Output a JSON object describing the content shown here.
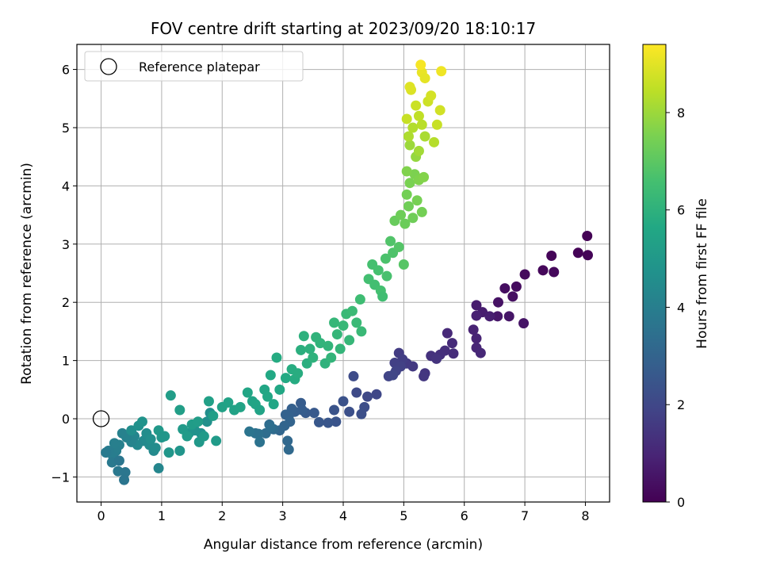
{
  "chart_data": {
    "type": "scatter",
    "title": "FOV centre drift starting at 2023/09/20 18:10:17",
    "xlabel": "Angular distance from reference (arcmin)",
    "ylabel": "Rotation from reference (arcmin)",
    "xlim": [
      -0.4,
      8.4
    ],
    "ylim": [
      -1.43,
      6.43
    ],
    "xticks": [
      0,
      1,
      2,
      3,
      4,
      5,
      6,
      7,
      8
    ],
    "yticks": [
      -1,
      0,
      1,
      2,
      3,
      4,
      5,
      6
    ],
    "xtick_labels": [
      "0",
      "1",
      "2",
      "3",
      "4",
      "5",
      "6",
      "7",
      "8"
    ],
    "ytick_labels": [
      "−1",
      "0",
      "1",
      "2",
      "3",
      "4",
      "5",
      "6"
    ],
    "grid": true,
    "legend": {
      "position": "top-left",
      "entries": [
        {
          "label": "Reference platepar",
          "marker": "open-circle"
        }
      ]
    },
    "reference_point": {
      "x": 0,
      "y": 0
    },
    "colorbar": {
      "label": "Hours from first FF file",
      "colormap": "viridis",
      "range": [
        0,
        9.4
      ],
      "ticks": [
        0,
        2,
        4,
        6,
        8
      ],
      "tick_labels": [
        "0",
        "2",
        "4",
        "6",
        "8"
      ]
    },
    "points": [
      {
        "x": 8.03,
        "y": 3.14,
        "h": 0.02
      },
      {
        "x": 7.88,
        "y": 2.85,
        "h": 0.05
      },
      {
        "x": 8.04,
        "y": 2.81,
        "h": 0.08
      },
      {
        "x": 7.44,
        "y": 2.8,
        "h": 0.12
      },
      {
        "x": 7.3,
        "y": 2.55,
        "h": 0.16
      },
      {
        "x": 7.48,
        "y": 2.52,
        "h": 0.2
      },
      {
        "x": 7.0,
        "y": 2.48,
        "h": 0.25
      },
      {
        "x": 6.86,
        "y": 2.27,
        "h": 0.3
      },
      {
        "x": 6.67,
        "y": 2.24,
        "h": 0.35
      },
      {
        "x": 6.8,
        "y": 2.1,
        "h": 0.4
      },
      {
        "x": 6.56,
        "y": 2.0,
        "h": 0.45
      },
      {
        "x": 6.98,
        "y": 1.64,
        "h": 0.5
      },
      {
        "x": 6.74,
        "y": 1.76,
        "h": 0.55
      },
      {
        "x": 6.55,
        "y": 1.76,
        "h": 0.6
      },
      {
        "x": 6.2,
        "y": 1.95,
        "h": 0.7
      },
      {
        "x": 6.3,
        "y": 1.83,
        "h": 0.75
      },
      {
        "x": 6.42,
        "y": 1.76,
        "h": 0.8
      },
      {
        "x": 6.2,
        "y": 1.77,
        "h": 0.85
      },
      {
        "x": 6.15,
        "y": 1.53,
        "h": 0.9
      },
      {
        "x": 6.2,
        "y": 1.38,
        "h": 0.95
      },
      {
        "x": 6.2,
        "y": 1.22,
        "h": 1.0
      },
      {
        "x": 6.27,
        "y": 1.13,
        "h": 1.05
      },
      {
        "x": 5.72,
        "y": 1.47,
        "h": 1.1
      },
      {
        "x": 5.8,
        "y": 1.3,
        "h": 1.15
      },
      {
        "x": 5.82,
        "y": 1.12,
        "h": 1.2
      },
      {
        "x": 5.68,
        "y": 1.17,
        "h": 1.25
      },
      {
        "x": 5.6,
        "y": 1.1,
        "h": 1.3
      },
      {
        "x": 5.45,
        "y": 1.08,
        "h": 1.35
      },
      {
        "x": 5.54,
        "y": 1.03,
        "h": 1.4
      },
      {
        "x": 5.35,
        "y": 0.78,
        "h": 1.45
      },
      {
        "x": 5.33,
        "y": 0.73,
        "h": 1.5
      },
      {
        "x": 5.15,
        "y": 0.9,
        "h": 1.55
      },
      {
        "x": 5.05,
        "y": 0.95,
        "h": 1.6
      },
      {
        "x": 4.92,
        "y": 1.13,
        "h": 1.65
      },
      {
        "x": 4.98,
        "y": 1.02,
        "h": 1.7
      },
      {
        "x": 4.85,
        "y": 0.96,
        "h": 1.75
      },
      {
        "x": 4.95,
        "y": 0.9,
        "h": 1.8
      },
      {
        "x": 4.87,
        "y": 0.82,
        "h": 1.85
      },
      {
        "x": 4.75,
        "y": 0.73,
        "h": 1.9
      },
      {
        "x": 4.82,
        "y": 0.75,
        "h": 1.95
      },
      {
        "x": 4.55,
        "y": 0.42,
        "h": 2.0
      },
      {
        "x": 4.4,
        "y": 0.38,
        "h": 2.05
      },
      {
        "x": 4.22,
        "y": 0.45,
        "h": 2.1
      },
      {
        "x": 4.17,
        "y": 0.73,
        "h": 2.15
      },
      {
        "x": 4.35,
        "y": 0.2,
        "h": 2.2
      },
      {
        "x": 4.3,
        "y": 0.08,
        "h": 2.25
      },
      {
        "x": 4.1,
        "y": 0.12,
        "h": 2.3
      },
      {
        "x": 4.0,
        "y": 0.3,
        "h": 2.35
      },
      {
        "x": 3.85,
        "y": 0.15,
        "h": 2.4
      },
      {
        "x": 3.88,
        "y": -0.05,
        "h": 2.45
      },
      {
        "x": 3.75,
        "y": -0.07,
        "h": 2.5
      },
      {
        "x": 3.6,
        "y": -0.06,
        "h": 2.55
      },
      {
        "x": 3.52,
        "y": 0.1,
        "h": 2.6
      },
      {
        "x": 3.38,
        "y": 0.1,
        "h": 2.65
      },
      {
        "x": 3.3,
        "y": 0.27,
        "h": 2.7
      },
      {
        "x": 3.32,
        "y": 0.15,
        "h": 2.75
      },
      {
        "x": 3.2,
        "y": 0.12,
        "h": 2.8
      },
      {
        "x": 3.15,
        "y": 0.17,
        "h": 2.85
      },
      {
        "x": 3.1,
        "y": 0.05,
        "h": 2.9
      },
      {
        "x": 3.05,
        "y": 0.07,
        "h": 2.95
      },
      {
        "x": 3.12,
        "y": -0.05,
        "h": 3.0
      },
      {
        "x": 3.03,
        "y": -0.12,
        "h": 3.05
      },
      {
        "x": 2.95,
        "y": -0.2,
        "h": 3.1
      },
      {
        "x": 3.08,
        "y": -0.38,
        "h": 3.15
      },
      {
        "x": 3.1,
        "y": -0.53,
        "h": 3.2
      },
      {
        "x": 2.85,
        "y": -0.18,
        "h": 3.25
      },
      {
        "x": 2.78,
        "y": -0.1,
        "h": 3.3
      },
      {
        "x": 2.72,
        "y": -0.25,
        "h": 3.35
      },
      {
        "x": 2.8,
        "y": -0.15,
        "h": 3.4
      },
      {
        "x": 2.6,
        "y": -0.26,
        "h": 3.45
      },
      {
        "x": 2.55,
        "y": -0.25,
        "h": 3.5
      },
      {
        "x": 2.62,
        "y": -0.4,
        "h": 3.55
      },
      {
        "x": 2.45,
        "y": -0.22,
        "h": 3.6
      },
      {
        "x": 1.8,
        "y": 0.1,
        "h": 4.6
      },
      {
        "x": 1.75,
        "y": -0.05,
        "h": 4.65
      },
      {
        "x": 1.65,
        "y": -0.25,
        "h": 4.7
      },
      {
        "x": 1.55,
        "y": -0.2,
        "h": 4.75
      },
      {
        "x": 1.45,
        "y": -0.25,
        "h": 4.8
      },
      {
        "x": 1.3,
        "y": -0.55,
        "h": 4.85
      },
      {
        "x": 1.12,
        "y": -0.58,
        "h": 4.9
      },
      {
        "x": 1.05,
        "y": -0.3,
        "h": 4.95
      },
      {
        "x": 0.95,
        "y": -0.2,
        "h": 5.0
      },
      {
        "x": 0.95,
        "y": -0.85,
        "h": 4.3
      },
      {
        "x": 0.87,
        "y": -0.55,
        "h": 4.4
      },
      {
        "x": 0.8,
        "y": -0.45,
        "h": 4.5
      },
      {
        "x": 0.7,
        "y": -0.38,
        "h": 4.45
      },
      {
        "x": 0.6,
        "y": -0.45,
        "h": 4.35
      },
      {
        "x": 0.55,
        "y": -0.3,
        "h": 4.25
      },
      {
        "x": 0.5,
        "y": -0.4,
        "h": 4.2
      },
      {
        "x": 0.42,
        "y": -0.32,
        "h": 4.15
      },
      {
        "x": 0.35,
        "y": -0.25,
        "h": 4.1
      },
      {
        "x": 0.3,
        "y": -0.45,
        "h": 4.05
      },
      {
        "x": 0.25,
        "y": -0.55,
        "h": 4.0
      },
      {
        "x": 0.2,
        "y": -0.65,
        "h": 3.95
      },
      {
        "x": 0.12,
        "y": -0.55,
        "h": 3.9
      },
      {
        "x": 0.08,
        "y": -0.58,
        "h": 3.85
      },
      {
        "x": 0.18,
        "y": -0.75,
        "h": 3.8
      },
      {
        "x": 0.28,
        "y": -0.9,
        "h": 3.75
      },
      {
        "x": 0.4,
        "y": -0.92,
        "h": 3.7
      },
      {
        "x": 0.38,
        "y": -1.05,
        "h": 3.65
      },
      {
        "x": 0.3,
        "y": -0.72,
        "h": 3.68
      },
      {
        "x": 0.22,
        "y": -0.42,
        "h": 4.02
      },
      {
        "x": 0.5,
        "y": -0.2,
        "h": 4.6
      },
      {
        "x": 0.62,
        "y": -0.12,
        "h": 4.7
      },
      {
        "x": 0.68,
        "y": -0.05,
        "h": 4.8
      },
      {
        "x": 0.75,
        "y": -0.25,
        "h": 4.55
      },
      {
        "x": 0.82,
        "y": -0.35,
        "h": 4.62
      },
      {
        "x": 0.9,
        "y": -0.5,
        "h": 4.5
      },
      {
        "x": 1.0,
        "y": -0.32,
        "h": 4.9
      },
      {
        "x": 1.15,
        "y": 0.4,
        "h": 5.2
      },
      {
        "x": 1.3,
        "y": 0.15,
        "h": 5.25
      },
      {
        "x": 1.35,
        "y": -0.18,
        "h": 5.05
      },
      {
        "x": 1.42,
        "y": -0.3,
        "h": 5.1
      },
      {
        "x": 1.5,
        "y": -0.1,
        "h": 5.15
      },
      {
        "x": 1.6,
        "y": -0.05,
        "h": 5.2
      },
      {
        "x": 1.62,
        "y": -0.4,
        "h": 5.0
      },
      {
        "x": 1.7,
        "y": -0.3,
        "h": 5.05
      },
      {
        "x": 1.78,
        "y": 0.3,
        "h": 5.3
      },
      {
        "x": 1.85,
        "y": 0.05,
        "h": 5.25
      },
      {
        "x": 1.9,
        "y": -0.38,
        "h": 5.1
      },
      {
        "x": 2.0,
        "y": 0.2,
        "h": 5.35
      },
      {
        "x": 2.1,
        "y": 0.28,
        "h": 5.4
      },
      {
        "x": 2.2,
        "y": 0.15,
        "h": 5.38
      },
      {
        "x": 2.3,
        "y": 0.2,
        "h": 5.42
      },
      {
        "x": 2.42,
        "y": 0.45,
        "h": 5.5
      },
      {
        "x": 2.5,
        "y": 0.3,
        "h": 5.45
      },
      {
        "x": 2.55,
        "y": 0.25,
        "h": 5.48
      },
      {
        "x": 2.62,
        "y": 0.15,
        "h": 5.44
      },
      {
        "x": 2.7,
        "y": 0.5,
        "h": 5.55
      },
      {
        "x": 2.75,
        "y": 0.38,
        "h": 5.58
      },
      {
        "x": 2.8,
        "y": 0.75,
        "h": 5.65
      },
      {
        "x": 2.85,
        "y": 0.25,
        "h": 5.55
      },
      {
        "x": 2.9,
        "y": 1.05,
        "h": 5.75
      },
      {
        "x": 2.95,
        "y": 0.5,
        "h": 5.6
      },
      {
        "x": 3.05,
        "y": 0.7,
        "h": 5.7
      },
      {
        "x": 3.15,
        "y": 0.85,
        "h": 5.8
      },
      {
        "x": 3.2,
        "y": 0.68,
        "h": 5.78
      },
      {
        "x": 3.25,
        "y": 0.78,
        "h": 5.82
      },
      {
        "x": 3.3,
        "y": 1.18,
        "h": 5.9
      },
      {
        "x": 3.35,
        "y": 1.42,
        "h": 5.95
      },
      {
        "x": 3.4,
        "y": 0.95,
        "h": 5.88
      },
      {
        "x": 3.45,
        "y": 1.2,
        "h": 5.98
      },
      {
        "x": 3.5,
        "y": 1.05,
        "h": 6.0
      },
      {
        "x": 3.55,
        "y": 1.4,
        "h": 6.05
      },
      {
        "x": 3.62,
        "y": 1.3,
        "h": 6.08
      },
      {
        "x": 3.7,
        "y": 0.95,
        "h": 6.02
      },
      {
        "x": 3.75,
        "y": 1.25,
        "h": 6.1
      },
      {
        "x": 3.8,
        "y": 1.05,
        "h": 6.12
      },
      {
        "x": 3.85,
        "y": 1.65,
        "h": 6.2
      },
      {
        "x": 3.9,
        "y": 1.45,
        "h": 6.18
      },
      {
        "x": 3.95,
        "y": 1.2,
        "h": 6.15
      },
      {
        "x": 4.0,
        "y": 1.6,
        "h": 6.25
      },
      {
        "x": 4.05,
        "y": 1.8,
        "h": 6.3
      },
      {
        "x": 4.1,
        "y": 1.35,
        "h": 6.22
      },
      {
        "x": 4.15,
        "y": 1.85,
        "h": 6.35
      },
      {
        "x": 4.22,
        "y": 1.65,
        "h": 6.32
      },
      {
        "x": 4.28,
        "y": 2.05,
        "h": 6.45
      },
      {
        "x": 4.3,
        "y": 1.5,
        "h": 6.3
      },
      {
        "x": 4.42,
        "y": 2.4,
        "h": 6.55
      },
      {
        "x": 4.48,
        "y": 2.65,
        "h": 6.6
      },
      {
        "x": 4.52,
        "y": 2.3,
        "h": 6.52
      },
      {
        "x": 4.58,
        "y": 2.55,
        "h": 6.62
      },
      {
        "x": 4.62,
        "y": 2.2,
        "h": 6.58
      },
      {
        "x": 4.65,
        "y": 2.1,
        "h": 6.5
      },
      {
        "x": 4.7,
        "y": 2.75,
        "h": 6.7
      },
      {
        "x": 4.72,
        "y": 2.45,
        "h": 6.65
      },
      {
        "x": 4.78,
        "y": 3.05,
        "h": 6.8
      },
      {
        "x": 4.82,
        "y": 2.85,
        "h": 6.75
      },
      {
        "x": 4.85,
        "y": 3.4,
        "h": 7.2
      },
      {
        "x": 4.92,
        "y": 2.95,
        "h": 6.85
      },
      {
        "x": 4.95,
        "y": 3.5,
        "h": 7.3
      },
      {
        "x": 5.0,
        "y": 2.65,
        "h": 6.9
      },
      {
        "x": 5.02,
        "y": 3.35,
        "h": 7.25
      },
      {
        "x": 5.05,
        "y": 3.85,
        "h": 7.4
      },
      {
        "x": 5.08,
        "y": 3.65,
        "h": 7.35
      },
      {
        "x": 5.1,
        "y": 4.05,
        "h": 7.5
      },
      {
        "x": 5.15,
        "y": 3.45,
        "h": 7.32
      },
      {
        "x": 5.18,
        "y": 4.2,
        "h": 7.55
      },
      {
        "x": 5.22,
        "y": 3.75,
        "h": 7.45
      },
      {
        "x": 5.25,
        "y": 4.1,
        "h": 7.6
      },
      {
        "x": 5.3,
        "y": 3.55,
        "h": 7.4
      },
      {
        "x": 5.33,
        "y": 4.15,
        "h": 7.65
      },
      {
        "x": 5.05,
        "y": 4.25,
        "h": 7.6
      },
      {
        "x": 5.1,
        "y": 4.7,
        "h": 8.0
      },
      {
        "x": 5.15,
        "y": 5.0,
        "h": 8.3
      },
      {
        "x": 5.2,
        "y": 4.5,
        "h": 7.9
      },
      {
        "x": 5.25,
        "y": 5.2,
        "h": 8.5
      },
      {
        "x": 5.3,
        "y": 5.05,
        "h": 8.4
      },
      {
        "x": 5.35,
        "y": 4.85,
        "h": 8.2
      },
      {
        "x": 5.4,
        "y": 5.45,
        "h": 8.7
      },
      {
        "x": 5.45,
        "y": 5.55,
        "h": 8.8
      },
      {
        "x": 5.5,
        "y": 4.75,
        "h": 8.35
      },
      {
        "x": 5.55,
        "y": 5.05,
        "h": 8.6
      },
      {
        "x": 5.6,
        "y": 5.3,
        "h": 8.75
      },
      {
        "x": 5.62,
        "y": 5.97,
        "h": 9.2
      },
      {
        "x": 5.3,
        "y": 5.95,
        "h": 9.1
      },
      {
        "x": 5.28,
        "y": 6.08,
        "h": 9.3
      },
      {
        "x": 5.35,
        "y": 5.85,
        "h": 9.05
      },
      {
        "x": 5.12,
        "y": 5.65,
        "h": 8.9
      },
      {
        "x": 5.1,
        "y": 5.7,
        "h": 8.95
      },
      {
        "x": 5.05,
        "y": 5.15,
        "h": 8.6
      },
      {
        "x": 5.08,
        "y": 4.85,
        "h": 8.25
      },
      {
        "x": 5.2,
        "y": 5.38,
        "h": 8.65
      },
      {
        "x": 5.25,
        "y": 4.6,
        "h": 8.1
      }
    ]
  }
}
